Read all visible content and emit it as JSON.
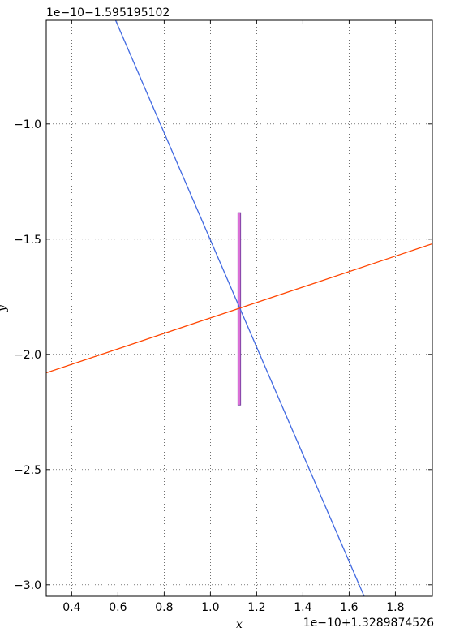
{
  "chart_data": {
    "type": "line",
    "title": "",
    "xlabel": "x",
    "ylabel": "y",
    "x_offset_text": "1e−10+1.3289874526",
    "y_offset_text": "1e−10−1.595195102",
    "xlim": [
      0.29,
      1.96
    ],
    "ylim": [
      -3.05,
      -0.55
    ],
    "x_ticks": [
      0.4,
      0.6,
      0.8,
      1.0,
      1.2,
      1.4,
      1.6,
      1.8
    ],
    "x_tick_labels": [
      "0.4",
      "0.6",
      "0.8",
      "1.0",
      "1.2",
      "1.4",
      "1.6",
      "1.8"
    ],
    "y_ticks": [
      -1.0,
      -1.5,
      -2.0,
      -2.5,
      -3.0
    ],
    "y_tick_labels": [
      "−1.0",
      "−1.5",
      "−2.0",
      "−2.5",
      "−3.0"
    ],
    "grid": true,
    "series": [
      {
        "color": "#4169e1",
        "x": [
          0.59,
          1.665
        ],
        "y": [
          -0.55,
          -3.05
        ]
      },
      {
        "color": "#ff4500",
        "x": [
          0.29,
          1.96
        ],
        "y": [
          -2.08,
          -1.52
        ]
      }
    ],
    "bars": [
      {
        "color": "#da70d6",
        "edge_color": "#6a3a9a",
        "x": 1.125,
        "width": 0.012,
        "y0": -2.22,
        "y1": -1.385
      }
    ]
  }
}
